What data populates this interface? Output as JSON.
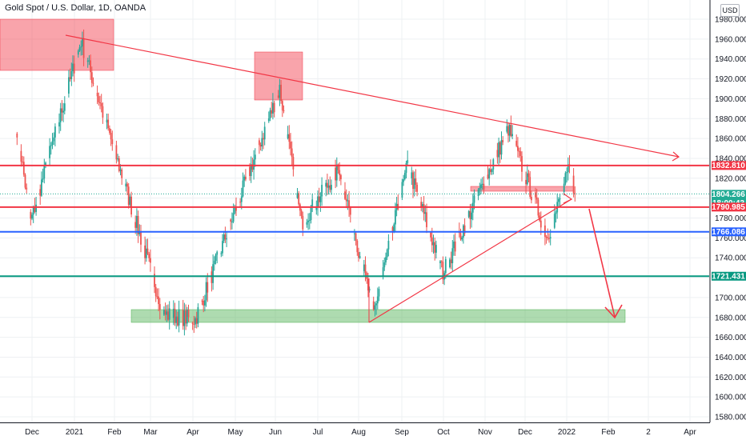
{
  "header": {
    "title": "Gold Spot / U.S. Dollar, 1D, OANDA"
  },
  "price_axis": {
    "currency_button_label": "USD"
  },
  "chart_data": {
    "type": "candlestick",
    "title": "Gold Spot / U.S. Dollar, 1D, OANDA",
    "currency": "USD",
    "grid": true,
    "y_range": [
      1570,
      2000
    ],
    "y_ticks": [
      "1980.000",
      "1960.000",
      "1940.000",
      "1920.000",
      "1900.000",
      "1880.000",
      "1860.000",
      "1840.000",
      "1820.000",
      "1800.000",
      "1780.000",
      "1760.000",
      "1740.000",
      "1720.000",
      "1700.000",
      "1680.000",
      "1660.000",
      "1640.000",
      "1620.000",
      "1600.000",
      "1580.000"
    ],
    "x_ticks": [
      "Dec",
      "2021",
      "Feb",
      "Mar",
      "Apr",
      "May",
      "Jun",
      "Jul",
      "Aug",
      "Sep",
      "Oct",
      "Nov",
      "Dec",
      "2022",
      "Feb",
      "2",
      "Apr"
    ],
    "key_points": [
      {
        "date": "2020-11-20",
        "close": 1870
      },
      {
        "date": "2020-11-30",
        "close": 1776
      },
      {
        "date": "2021-01-06",
        "close": 1958
      },
      {
        "date": "2021-03-08",
        "close": 1683
      },
      {
        "date": "2021-03-31",
        "close": 1678
      },
      {
        "date": "2021-06-01",
        "close": 1910
      },
      {
        "date": "2021-06-17",
        "close": 1775
      },
      {
        "date": "2021-07-15",
        "close": 1830
      },
      {
        "date": "2021-08-09",
        "close": 1685
      },
      {
        "date": "2021-09-03",
        "close": 1833
      },
      {
        "date": "2021-09-29",
        "close": 1725
      },
      {
        "date": "2021-11-16",
        "close": 1870
      },
      {
        "date": "2021-12-15",
        "close": 1760
      },
      {
        "date": "2021-12-31",
        "close": 1830
      },
      {
        "date": "2022-01-04",
        "close": 1804.266
      }
    ],
    "price_tags": [
      {
        "value": "1832.810",
        "color": "#f23645"
      },
      {
        "value": "1804.266",
        "countdown": "18:00:43",
        "color": "#22ab94"
      },
      {
        "value": "1790.985",
        "color": "#f23645"
      },
      {
        "value": "1766.086",
        "color": "#2962ff"
      },
      {
        "value": "1721.431",
        "color": "#089981"
      }
    ],
    "horizontal_levels": [
      {
        "value": 1832.81,
        "color": "#f23645"
      },
      {
        "value": 1790.985,
        "color": "#f23645"
      },
      {
        "value": 1766.086,
        "color": "#2962ff"
      },
      {
        "value": 1721.431,
        "color": "#089981"
      }
    ],
    "colors": {
      "up": "#26a69a",
      "down": "#ef5350",
      "resistance": "#f23645",
      "support_zone": "#4caf50",
      "blue_level": "#2962ff"
    }
  }
}
